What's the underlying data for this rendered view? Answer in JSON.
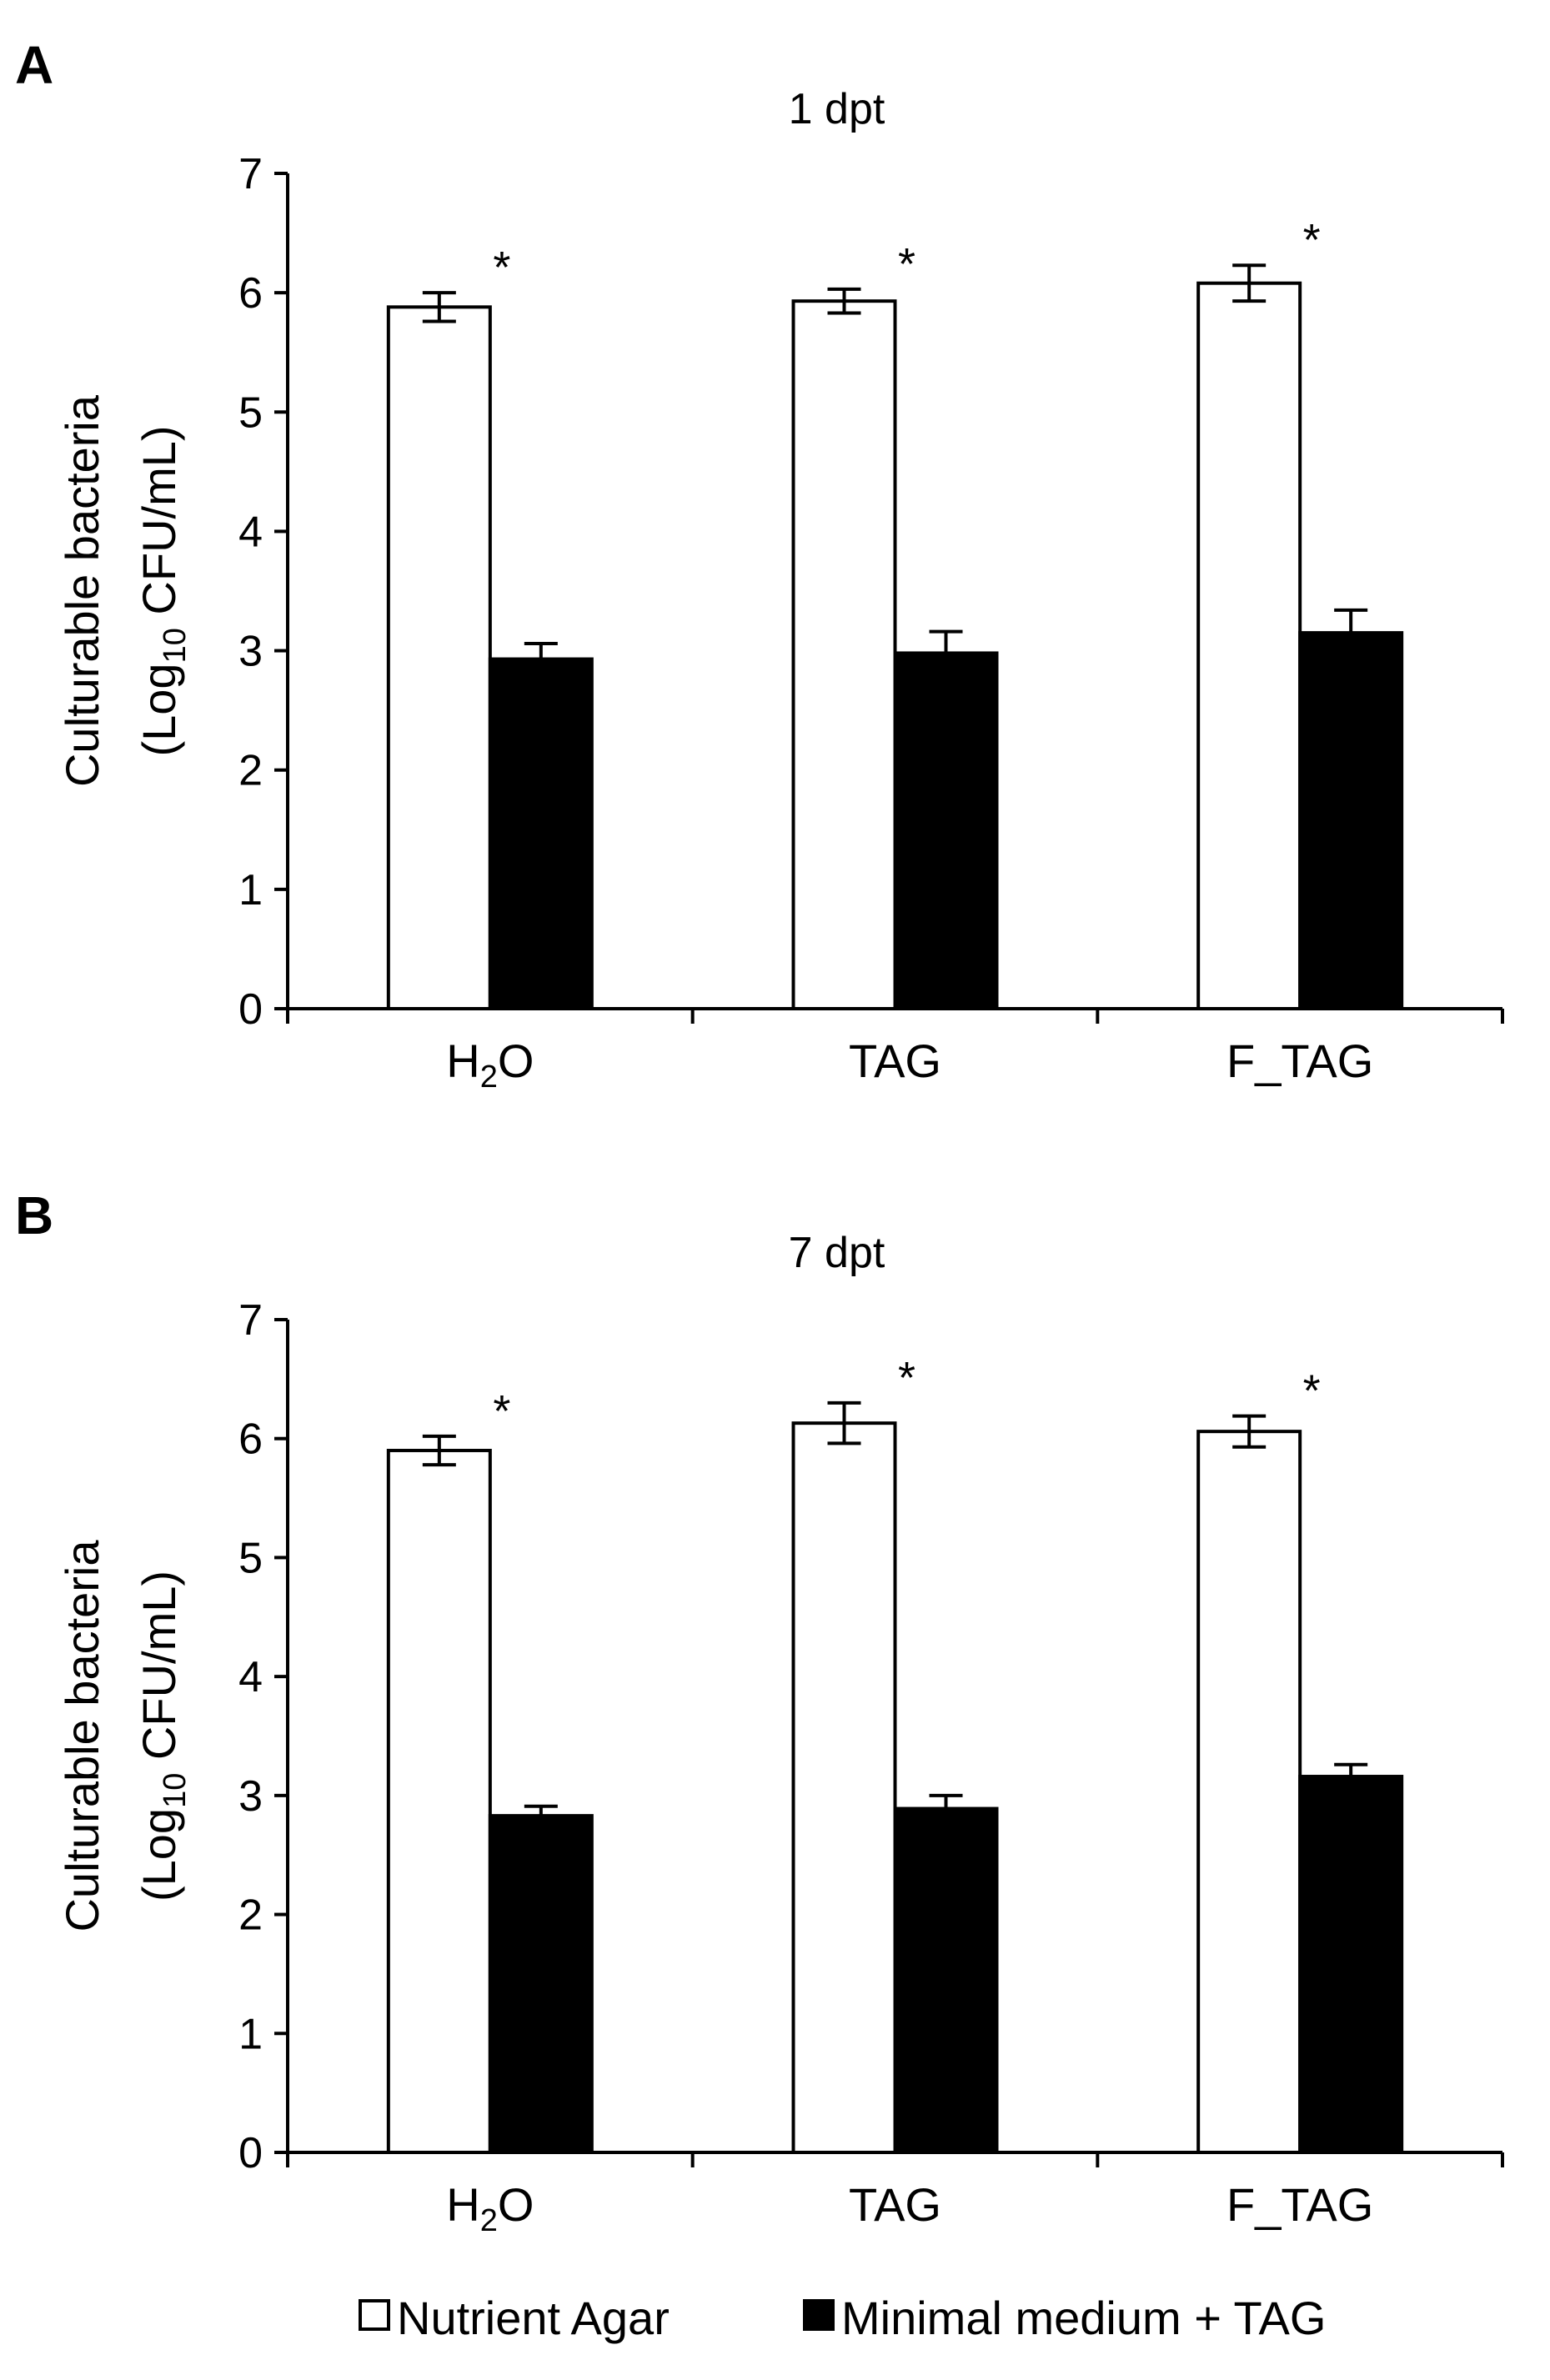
{
  "chart_data": [
    {
      "type": "bar",
      "panel": "A",
      "title": "1 dpt",
      "ylabel_line1": "Culturable bacteria",
      "ylabel_line2_pre": "(Log",
      "ylabel_line2_sub": "10",
      "ylabel_line2_post": " CFU/mL)",
      "ylim": [
        0,
        7
      ],
      "yticks": [
        "0",
        "1",
        "2",
        "3",
        "4",
        "5",
        "6",
        "7"
      ],
      "categories": [
        {
          "label": "H",
          "sub": "2",
          "post": "O"
        },
        {
          "label": "TAG",
          "sub": "",
          "post": ""
        },
        {
          "label": "F_TAG",
          "sub": "",
          "post": ""
        }
      ],
      "series": [
        {
          "name": "Nutrient Agar",
          "fill": "#ffffff",
          "values": [
            5.88,
            5.93,
            6.08
          ],
          "errors": [
            0.12,
            0.1,
            0.15
          ]
        },
        {
          "name": "Minimal medium + TAG",
          "fill": "#000000",
          "values": [
            2.93,
            2.98,
            3.15
          ],
          "errors": [
            0.13,
            0.18,
            0.19
          ]
        }
      ],
      "significance": [
        "*",
        "*",
        "*"
      ]
    },
    {
      "type": "bar",
      "panel": "B",
      "title": "7 dpt",
      "ylabel_line1": "Culturable bacteria",
      "ylabel_line2_pre": "(Log",
      "ylabel_line2_sub": "10",
      "ylabel_line2_post": " CFU/mL)",
      "ylim": [
        0,
        7
      ],
      "yticks": [
        "0",
        "1",
        "2",
        "3",
        "4",
        "5",
        "6",
        "7"
      ],
      "categories": [
        {
          "label": "H",
          "sub": "2",
          "post": "O"
        },
        {
          "label": "TAG",
          "sub": "",
          "post": ""
        },
        {
          "label": "F_TAG",
          "sub": "",
          "post": ""
        }
      ],
      "series": [
        {
          "name": "Nutrient Agar",
          "fill": "#ffffff",
          "values": [
            5.9,
            6.13,
            6.06
          ],
          "errors": [
            0.12,
            0.17,
            0.13
          ]
        },
        {
          "name": "Minimal medium + TAG",
          "fill": "#000000",
          "values": [
            2.83,
            2.89,
            3.16
          ],
          "errors": [
            0.08,
            0.11,
            0.1
          ]
        }
      ],
      "significance": [
        "*",
        "*",
        "*"
      ]
    }
  ],
  "legend": {
    "items": [
      {
        "label": "Nutrient Agar",
        "fill": "#ffffff"
      },
      {
        "label": "Minimal medium + TAG",
        "fill": "#000000"
      }
    ]
  }
}
